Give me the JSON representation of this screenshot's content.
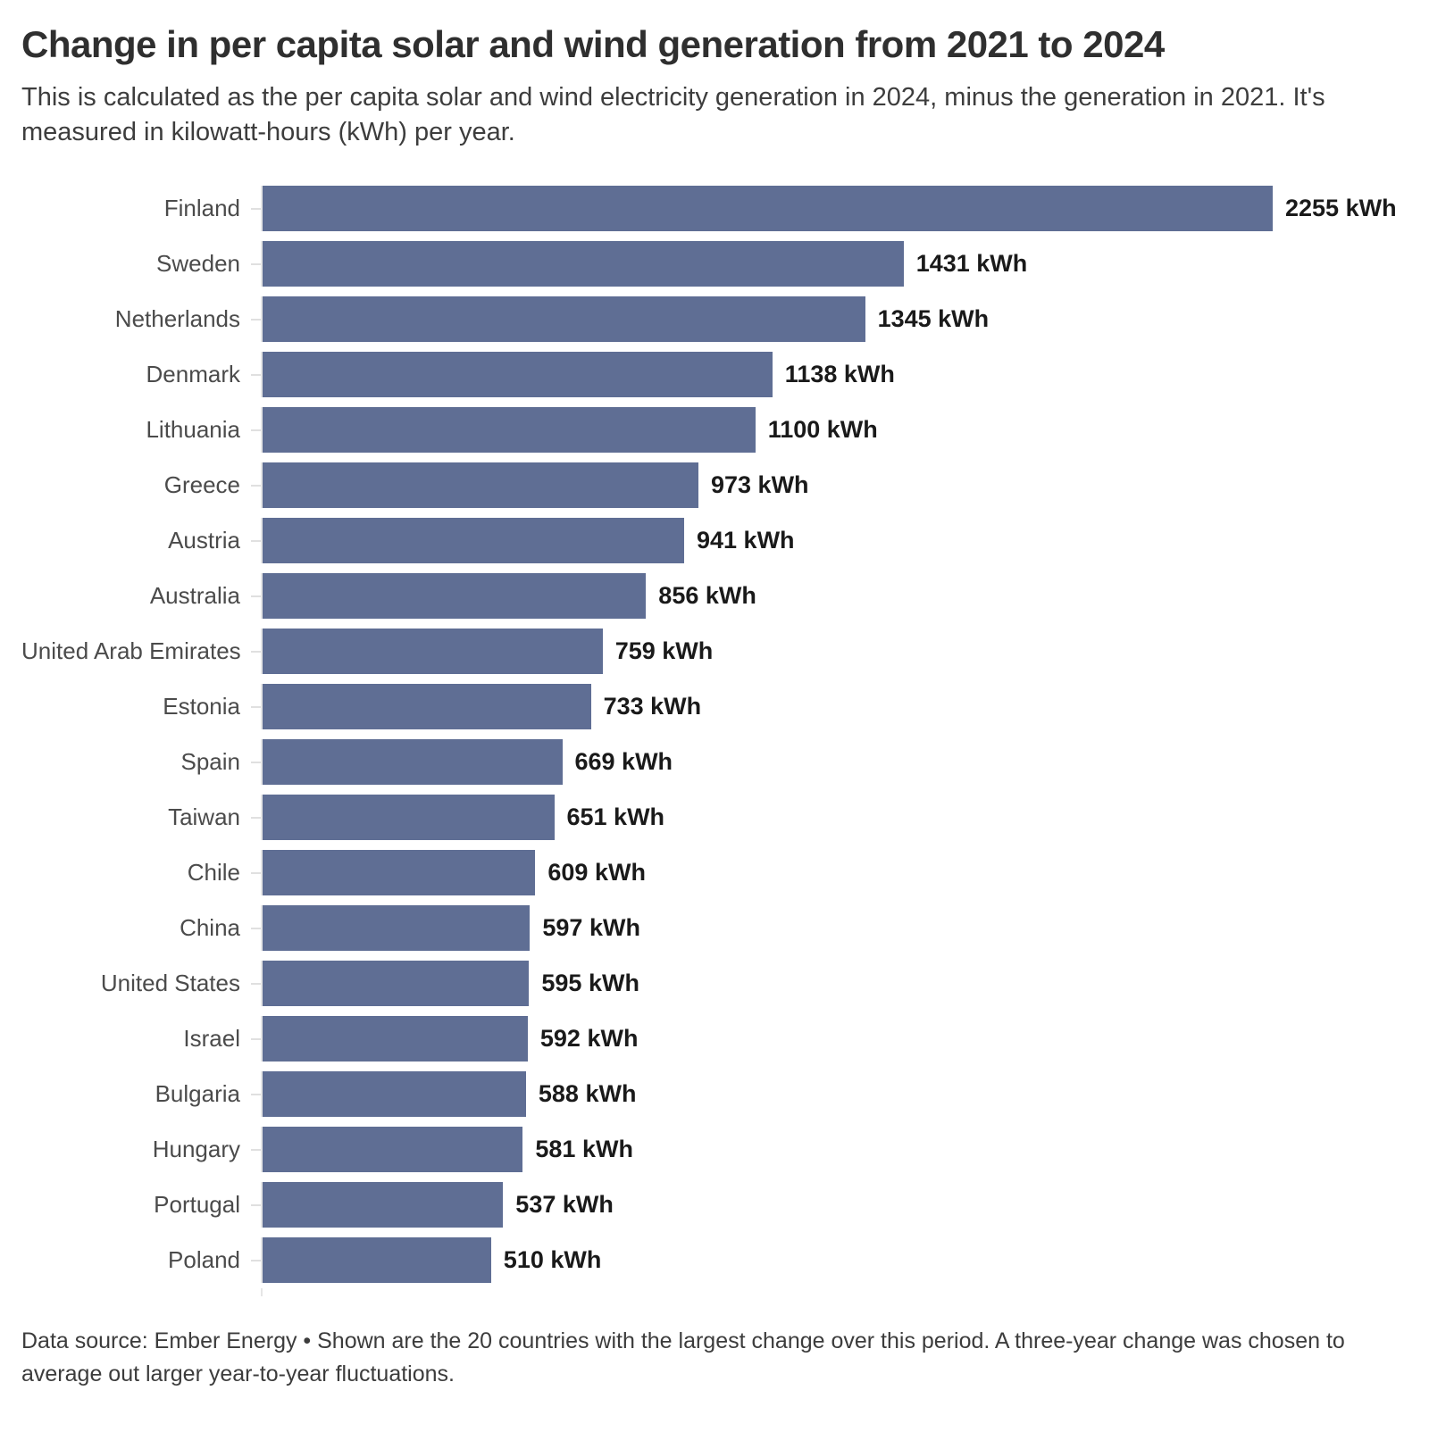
{
  "header": {
    "title": "Change in per capita solar and wind generation from 2021 to 2024",
    "subtitle": "This is calculated as the per capita solar and wind electricity generation in 2024, minus the generation in 2021. It's measured in kilowatt-hours (kWh) per year."
  },
  "chart_data": {
    "type": "bar",
    "orientation": "horizontal",
    "title": "Change in per capita solar and wind generation from 2021 to 2024",
    "categories": [
      "Finland",
      "Sweden",
      "Netherlands",
      "Denmark",
      "Lithuania",
      "Greece",
      "Austria",
      "Australia",
      "United Arab Emirates",
      "Estonia",
      "Spain",
      "Taiwan",
      "Chile",
      "China",
      "United States",
      "Israel",
      "Bulgaria",
      "Hungary",
      "Portugal",
      "Poland"
    ],
    "values": [
      2255,
      1431,
      1345,
      1138,
      1100,
      973,
      941,
      856,
      759,
      733,
      669,
      651,
      609,
      597,
      595,
      592,
      588,
      581,
      537,
      510
    ],
    "value_suffix": " kWh",
    "unit": "kWh",
    "xlim": [
      0,
      2255
    ],
    "grid": false,
    "legend": "none",
    "value_labels": "outside-end",
    "bar_color": "#5f6e94",
    "axis_color": "#e6e6e6"
  },
  "footer": {
    "text": "Data source: Ember Energy • Shown are the 20 countries with the largest change over this period. A three-year change was chosen to average out larger year-to-year fluctuations."
  }
}
